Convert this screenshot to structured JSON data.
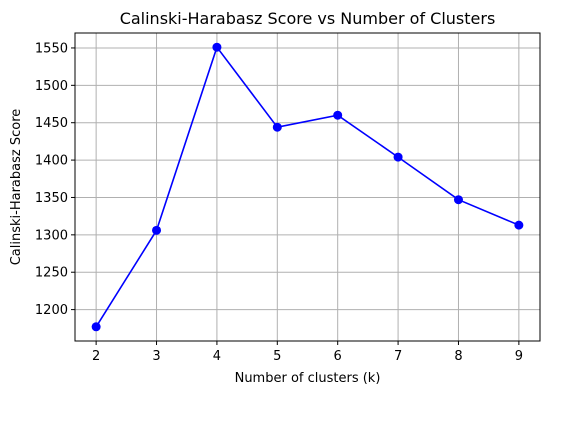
{
  "chart_data": {
    "type": "line",
    "title": "Calinski-Harabasz Score vs Number of Clusters",
    "xlabel": "Number of clusters (k)",
    "ylabel": "Calinski-Harabasz Score",
    "x": [
      2,
      3,
      4,
      5,
      6,
      7,
      8,
      9
    ],
    "series": [
      {
        "values": [
          1177,
          1306,
          1551,
          1444,
          1460,
          1404,
          1347,
          1313
        ],
        "color": "#0000ff",
        "marker": "circle"
      }
    ],
    "xticks": [
      "2",
      "3",
      "4",
      "5",
      "6",
      "7",
      "8",
      "9"
    ],
    "yticks": [
      "1200",
      "1250",
      "1300",
      "1350",
      "1400",
      "1450",
      "1500",
      "1550"
    ],
    "xlim": [
      1.65,
      9.35
    ],
    "ylim": [
      1158,
      1570
    ],
    "grid": true,
    "legend": "none"
  }
}
